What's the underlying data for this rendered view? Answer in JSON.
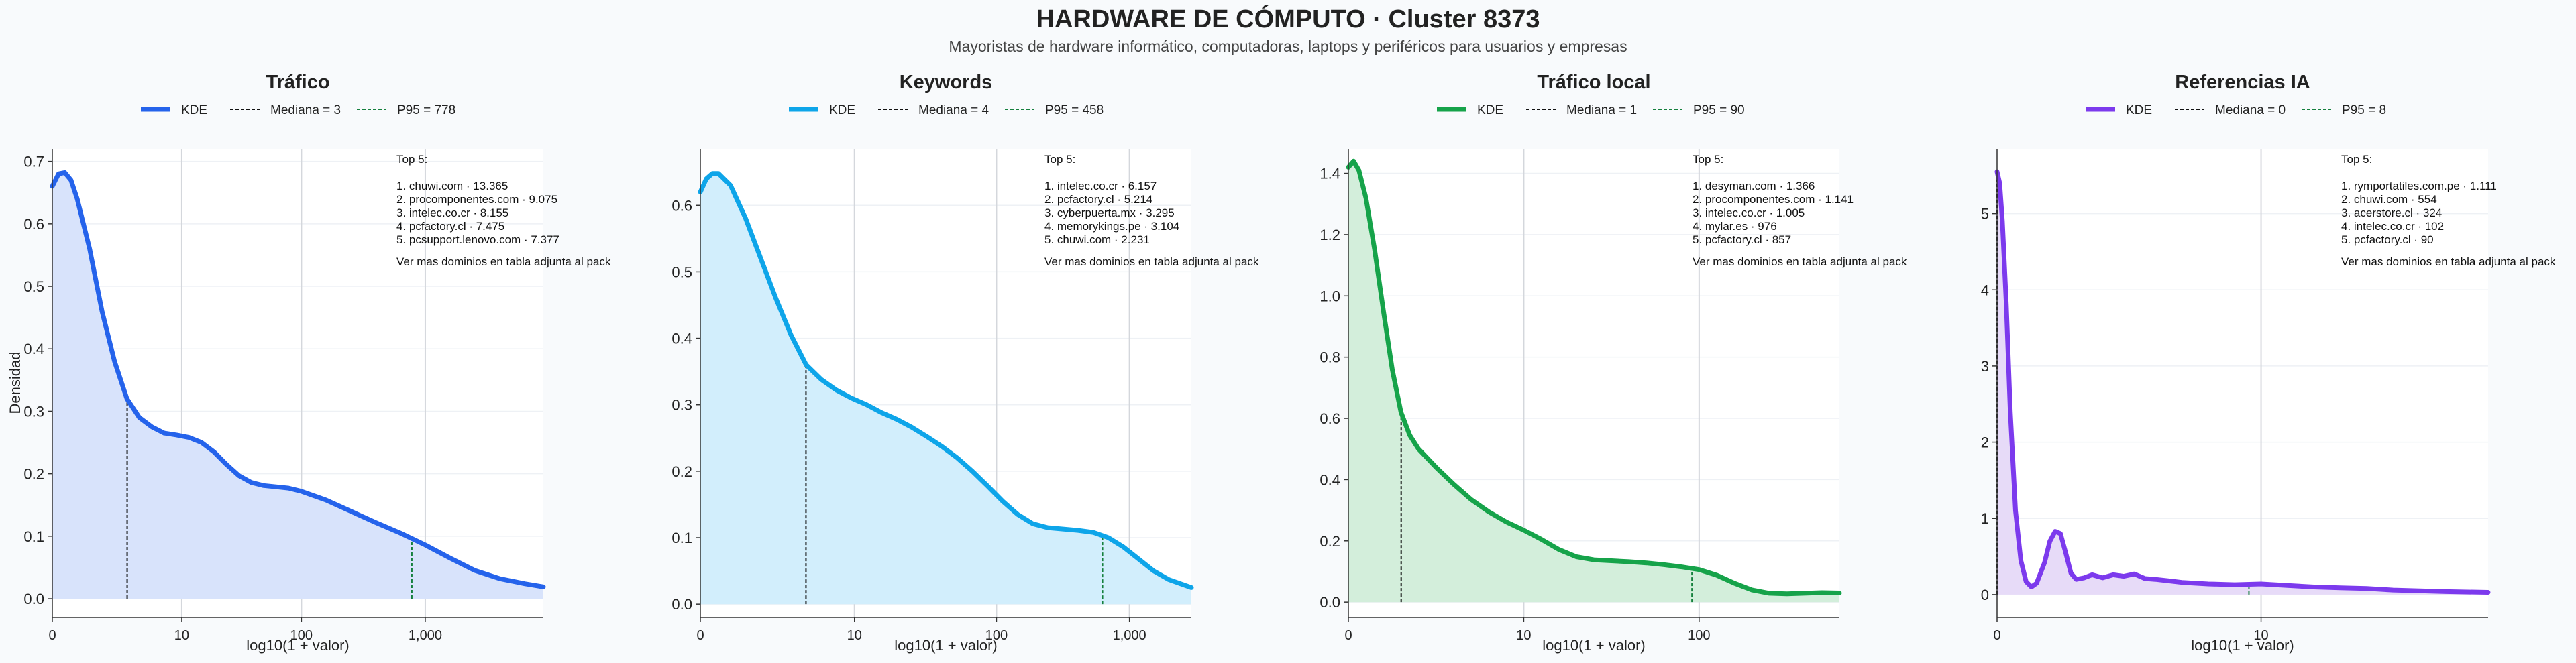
{
  "title": "HARDWARE DE CÓMPUTO · Cluster 8373",
  "subtitle": "Mayoristas de hardware informático, computadoras, laptops y periféricos para usuarios y empresas",
  "ylabel": "Densidad",
  "xlabel": "log10(1 + valor)",
  "legend_kde": "KDE",
  "colors": {
    "trafico": "#2563eb",
    "keywords": "#0ea5e9",
    "local": "#16a34a",
    "ia": "#7c3aed",
    "median": "#111111",
    "p95": "#15803d"
  },
  "chart_data": [
    {
      "type": "area",
      "title": "Tráfico",
      "color": "#2563eb",
      "fill": "#d8e3fb",
      "median_label": "Mediana = 3",
      "p95_label": "P95 = 778",
      "median_x": 0.602,
      "p95_x": 2.892,
      "xlim": [
        0,
        3.95
      ],
      "ylim": [
        -0.03,
        0.72
      ],
      "xticks": [
        {
          "v": 0,
          "label": "0"
        },
        {
          "v": 1.041,
          "label": "10"
        },
        {
          "v": 2.004,
          "label": "100"
        },
        {
          "v": 3.0,
          "label": "1,000"
        }
      ],
      "yticks": [
        {
          "v": 0.0,
          "label": "0.0"
        },
        {
          "v": 0.1,
          "label": "0.1"
        },
        {
          "v": 0.2,
          "label": "0.2"
        },
        {
          "v": 0.3,
          "label": "0.3"
        },
        {
          "v": 0.4,
          "label": "0.4"
        },
        {
          "v": 0.5,
          "label": "0.5"
        },
        {
          "v": 0.6,
          "label": "0.6"
        },
        {
          "v": 0.7,
          "label": "0.7"
        }
      ],
      "x": [
        0,
        0.05,
        0.1,
        0.15,
        0.2,
        0.3,
        0.4,
        0.5,
        0.6,
        0.7,
        0.8,
        0.9,
        1.0,
        1.1,
        1.2,
        1.3,
        1.4,
        1.5,
        1.6,
        1.7,
        1.8,
        1.9,
        2.0,
        2.2,
        2.4,
        2.6,
        2.8,
        3.0,
        3.2,
        3.4,
        3.6,
        3.8,
        3.95
      ],
      "y": [
        0.66,
        0.68,
        0.682,
        0.67,
        0.64,
        0.56,
        0.46,
        0.38,
        0.32,
        0.29,
        0.275,
        0.265,
        0.262,
        0.258,
        0.25,
        0.235,
        0.215,
        0.197,
        0.186,
        0.181,
        0.179,
        0.177,
        0.172,
        0.158,
        0.14,
        0.122,
        0.105,
        0.086,
        0.065,
        0.045,
        0.032,
        0.024,
        0.019
      ],
      "top_heading": "Top 5:",
      "top_items": [
        "1. chuwi.com · 13.365",
        "2. procomponentes.com · 9.075",
        "3. intelec.co.cr · 8.155",
        "4. pcfactory.cl · 7.475",
        "5. pcsupport.lenovo.com · 7.377"
      ],
      "top_footer": "Ver mas dominios en tabla adjunta al pack"
    },
    {
      "type": "area",
      "title": "Keywords",
      "color": "#0ea5e9",
      "fill": "#d2eefc",
      "median_label": "Mediana = 4",
      "p95_label": "P95 = 458",
      "median_x": 0.699,
      "p95_x": 2.662,
      "xlim": [
        0,
        3.25
      ],
      "ylim": [
        -0.02,
        0.685
      ],
      "xticks": [
        {
          "v": 0,
          "label": "0"
        },
        {
          "v": 1.02,
          "label": "10"
        },
        {
          "v": 1.96,
          "label": "100"
        },
        {
          "v": 2.84,
          "label": "1,000"
        }
      ],
      "yticks": [
        {
          "v": 0.0,
          "label": "0.0"
        },
        {
          "v": 0.1,
          "label": "0.1"
        },
        {
          "v": 0.2,
          "label": "0.2"
        },
        {
          "v": 0.3,
          "label": "0.3"
        },
        {
          "v": 0.4,
          "label": "0.4"
        },
        {
          "v": 0.5,
          "label": "0.5"
        },
        {
          "v": 0.6,
          "label": "0.6"
        }
      ],
      "x": [
        0,
        0.04,
        0.08,
        0.12,
        0.2,
        0.3,
        0.4,
        0.5,
        0.6,
        0.7,
        0.8,
        0.9,
        1.0,
        1.1,
        1.2,
        1.3,
        1.4,
        1.5,
        1.6,
        1.7,
        1.8,
        1.9,
        2.0,
        2.1,
        2.2,
        2.3,
        2.4,
        2.5,
        2.6,
        2.7,
        2.8,
        2.9,
        3.0,
        3.1,
        3.25
      ],
      "y": [
        0.62,
        0.64,
        0.648,
        0.648,
        0.63,
        0.58,
        0.52,
        0.46,
        0.405,
        0.36,
        0.338,
        0.322,
        0.31,
        0.3,
        0.288,
        0.278,
        0.266,
        0.252,
        0.237,
        0.22,
        0.2,
        0.178,
        0.155,
        0.135,
        0.121,
        0.115,
        0.113,
        0.111,
        0.108,
        0.1,
        0.086,
        0.068,
        0.05,
        0.037,
        0.025
      ],
      "top_heading": "Top 5:",
      "top_items": [
        "1. intelec.co.cr · 6.157",
        "2. pcfactory.cl · 5.214",
        "3. cyberpuerta.mx · 3.295",
        "4. memorykings.pe · 3.104",
        "5. chuwi.com · 2.231"
      ],
      "top_footer": "Ver mas dominios en tabla adjunta al pack"
    },
    {
      "type": "area",
      "title": "Tráfico local",
      "color": "#16a34a",
      "fill": "#d3eedb",
      "median_label": "Mediana = 1",
      "p95_label": "P95 = 90",
      "median_x": 0.301,
      "p95_x": 1.959,
      "xlim": [
        0,
        2.8
      ],
      "ylim": [
        -0.05,
        1.48
      ],
      "xticks": [
        {
          "v": 0,
          "label": "0"
        },
        {
          "v": 1.0,
          "label": "10"
        },
        {
          "v": 2.0,
          "label": "100"
        }
      ],
      "yticks": [
        {
          "v": 0.0,
          "label": "0.0"
        },
        {
          "v": 0.2,
          "label": "0.2"
        },
        {
          "v": 0.4,
          "label": "0.4"
        },
        {
          "v": 0.6,
          "label": "0.6"
        },
        {
          "v": 0.8,
          "label": "0.8"
        },
        {
          "v": 1.0,
          "label": "1.0"
        },
        {
          "v": 1.2,
          "label": "1.2"
        },
        {
          "v": 1.4,
          "label": "1.4"
        }
      ],
      "x": [
        0,
        0.03,
        0.06,
        0.1,
        0.15,
        0.2,
        0.25,
        0.3,
        0.35,
        0.4,
        0.5,
        0.6,
        0.7,
        0.8,
        0.9,
        1.0,
        1.1,
        1.2,
        1.3,
        1.4,
        1.5,
        1.6,
        1.7,
        1.8,
        1.9,
        2.0,
        2.1,
        2.2,
        2.3,
        2.4,
        2.5,
        2.6,
        2.7,
        2.8
      ],
      "y": [
        1.42,
        1.44,
        1.41,
        1.32,
        1.15,
        0.95,
        0.76,
        0.62,
        0.545,
        0.5,
        0.44,
        0.385,
        0.335,
        0.295,
        0.262,
        0.235,
        0.205,
        0.172,
        0.148,
        0.138,
        0.135,
        0.132,
        0.128,
        0.122,
        0.115,
        0.106,
        0.088,
        0.062,
        0.04,
        0.029,
        0.027,
        0.029,
        0.031,
        0.03
      ],
      "top_heading": "Top 5:",
      "top_items": [
        "1. desyman.com · 1.366",
        "2. procomponentes.com · 1.141",
        "3. intelec.co.cr · 1.005",
        "4. mylar.es · 976",
        "5. pcfactory.cl · 857"
      ],
      "top_footer": "Ver mas dominios en tabla adjunta al pack"
    },
    {
      "type": "area",
      "title": "Referencias IA",
      "color": "#7c3aed",
      "fill": "#e7dbf8",
      "median_label": "Mediana = 0",
      "p95_label": "P95 = 8",
      "median_x": 0.0,
      "p95_x": 0.954,
      "xlim": [
        0,
        1.86
      ],
      "ylim": [
        -0.3,
        5.85
      ],
      "xticks": [
        {
          "v": 0,
          "label": "0"
        },
        {
          "v": 1.0,
          "label": "10"
        }
      ],
      "yticks": [
        {
          "v": 0,
          "label": "0"
        },
        {
          "v": 1,
          "label": "1"
        },
        {
          "v": 2,
          "label": "2"
        },
        {
          "v": 3,
          "label": "3"
        },
        {
          "v": 4,
          "label": "4"
        },
        {
          "v": 5,
          "label": "5"
        }
      ],
      "x": [
        0,
        0.01,
        0.02,
        0.035,
        0.05,
        0.07,
        0.09,
        0.11,
        0.13,
        0.15,
        0.18,
        0.2,
        0.22,
        0.24,
        0.26,
        0.28,
        0.3,
        0.33,
        0.36,
        0.4,
        0.44,
        0.48,
        0.52,
        0.56,
        0.6,
        0.65,
        0.7,
        0.8,
        0.9,
        1.0,
        1.1,
        1.2,
        1.3,
        1.4,
        1.5,
        1.6,
        1.7,
        1.86
      ],
      "y": [
        5.55,
        5.4,
        4.9,
        3.8,
        2.4,
        1.1,
        0.45,
        0.17,
        0.1,
        0.15,
        0.42,
        0.7,
        0.83,
        0.8,
        0.55,
        0.28,
        0.2,
        0.22,
        0.26,
        0.22,
        0.26,
        0.24,
        0.27,
        0.21,
        0.2,
        0.18,
        0.16,
        0.14,
        0.13,
        0.14,
        0.12,
        0.1,
        0.09,
        0.08,
        0.06,
        0.05,
        0.04,
        0.03
      ],
      "top_heading": "Top 5:",
      "top_items": [
        "1. rymportatiles.com.pe · 1.111",
        "2. chuwi.com · 554",
        "3. acerstore.cl · 324",
        "4. intelec.co.cr · 102",
        "5. pcfactory.cl · 90"
      ],
      "top_footer": "Ver mas dominios en tabla adjunta al pack"
    }
  ]
}
